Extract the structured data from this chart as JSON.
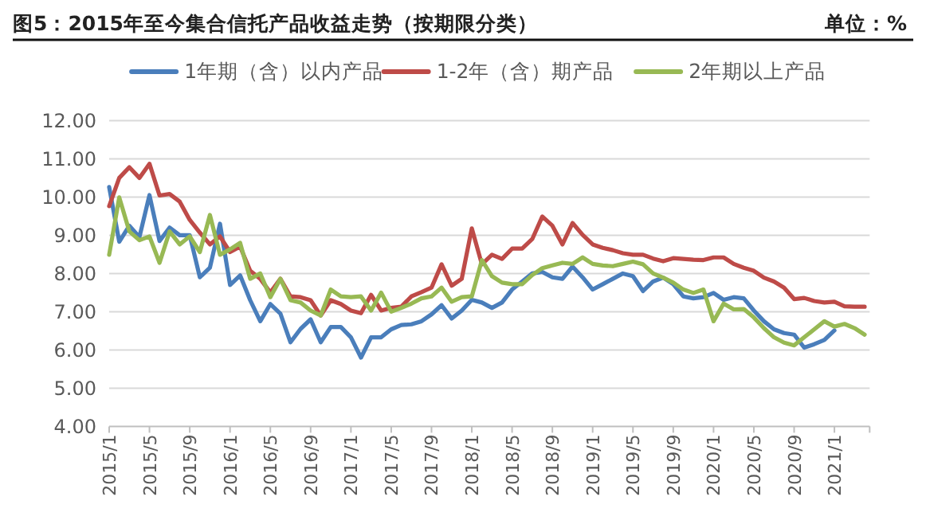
{
  "chart_data": {
    "type": "line",
    "title": "图5：2015年至今集合信托产品收益走势（按期限分类）",
    "annotations": [
      "单位：%"
    ],
    "categories": [
      "2015/1",
      null,
      null,
      null,
      "2015/5",
      null,
      null,
      null,
      "2015/9",
      null,
      null,
      null,
      "2016/1",
      null,
      null,
      null,
      "2016/5",
      null,
      null,
      null,
      "2016/9",
      null,
      null,
      null,
      "2017/1",
      null,
      null,
      null,
      "2017/5",
      null,
      null,
      null,
      "2017/9",
      null,
      null,
      null,
      "2018/1",
      null,
      null,
      null,
      "2018/5",
      null,
      null,
      null,
      "2018/9",
      null,
      null,
      null,
      "2019/1",
      null,
      null,
      null,
      "2019/5",
      null,
      null,
      null,
      "2019/9",
      null,
      null,
      null,
      "2020/1",
      null,
      null,
      null,
      "2020/5",
      null,
      null,
      null,
      "2020/9",
      null,
      null,
      null,
      "2021/1",
      null,
      null,
      null
    ],
    "series": [
      {
        "name": "1年期（含）以内产品",
        "color": "#4a7ebb",
        "values": [
          10.26,
          8.83,
          9.25,
          8.95,
          10.05,
          8.85,
          9.2,
          9.0,
          9.0,
          7.9,
          8.15,
          9.3,
          7.7,
          7.95,
          7.3,
          6.75,
          7.2,
          6.95,
          6.2,
          6.55,
          6.8,
          6.2,
          6.6,
          6.6,
          6.33,
          5.8,
          6.33,
          6.33,
          6.54,
          6.65,
          6.67,
          6.75,
          6.93,
          7.17,
          6.82,
          7.03,
          7.31,
          7.24,
          7.1,
          7.24,
          7.58,
          7.79,
          8.0,
          8.04,
          7.9,
          7.86,
          8.18,
          7.9,
          7.58,
          7.72,
          7.86,
          8.0,
          7.93,
          7.54,
          7.79,
          7.89,
          7.72,
          7.4,
          7.35,
          7.38,
          7.49,
          7.31,
          7.38,
          7.35,
          7.03,
          6.75,
          6.54,
          6.44,
          6.4,
          6.06,
          6.15,
          6.26,
          6.51,
          null,
          null,
          null
        ]
      },
      {
        "name": "1-2年（含）期产品",
        "color": "#be4b48",
        "values": [
          9.76,
          10.5,
          10.78,
          10.5,
          10.87,
          10.04,
          10.08,
          9.88,
          9.4,
          9.07,
          8.76,
          8.97,
          8.56,
          8.7,
          8.07,
          7.86,
          7.5,
          7.86,
          7.4,
          7.38,
          7.3,
          6.9,
          7.3,
          7.2,
          7.03,
          6.96,
          7.44,
          7.03,
          7.1,
          7.13,
          7.4,
          7.51,
          7.63,
          8.24,
          7.68,
          7.86,
          9.18,
          8.24,
          8.49,
          8.38,
          8.65,
          8.65,
          8.9,
          9.49,
          9.25,
          8.76,
          9.32,
          9.01,
          8.76,
          8.67,
          8.61,
          8.53,
          8.49,
          8.49,
          8.39,
          8.32,
          8.4,
          8.38,
          8.36,
          8.35,
          8.42,
          8.42,
          8.25,
          8.15,
          8.07,
          7.89,
          7.79,
          7.63,
          7.33,
          7.36,
          7.28,
          7.24,
          7.26,
          7.14,
          7.13,
          7.13
        ]
      },
      {
        "name": "2年期以上产品",
        "color": "#98b954",
        "values": [
          8.49,
          9.99,
          9.1,
          8.87,
          8.97,
          8.28,
          9.1,
          8.76,
          8.97,
          8.56,
          9.53,
          8.49,
          8.63,
          8.8,
          7.86,
          8.0,
          7.38,
          7.86,
          7.3,
          7.24,
          7.03,
          6.9,
          7.58,
          7.4,
          7.38,
          7.4,
          7.03,
          7.5,
          7.0,
          7.1,
          7.21,
          7.35,
          7.4,
          7.63,
          7.26,
          7.38,
          7.4,
          8.35,
          7.93,
          7.76,
          7.72,
          7.72,
          7.96,
          8.14,
          8.21,
          8.28,
          8.25,
          8.42,
          8.25,
          8.21,
          8.19,
          8.25,
          8.31,
          8.24,
          8.0,
          7.89,
          7.76,
          7.58,
          7.49,
          7.58,
          6.75,
          7.21,
          7.06,
          7.07,
          6.85,
          6.57,
          6.33,
          6.19,
          6.12,
          6.33,
          6.54,
          6.75,
          6.61,
          6.68,
          6.57,
          6.4
        ]
      }
    ],
    "ylim": [
      4,
      12
    ],
    "yticks": [
      {
        "value": 4,
        "label": "4.00"
      },
      {
        "value": 5,
        "label": "5.00"
      },
      {
        "value": 6,
        "label": "6.00"
      },
      {
        "value": 7,
        "label": "7.00"
      },
      {
        "value": 8,
        "label": "8.00"
      },
      {
        "value": 9,
        "label": "9.00"
      },
      {
        "value": 10,
        "label": "10.00"
      },
      {
        "value": 11,
        "label": "11.00"
      },
      {
        "value": 12,
        "label": "12.00"
      }
    ],
    "grid": "y",
    "legend": "top",
    "marker": "none",
    "line_style": "solid"
  }
}
